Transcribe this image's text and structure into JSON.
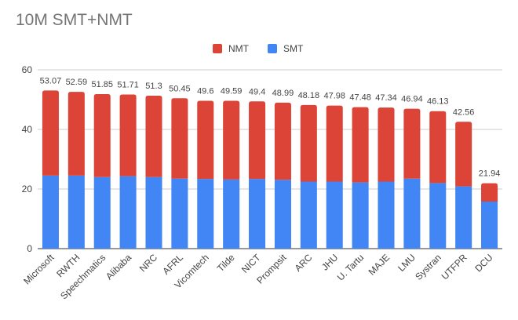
{
  "chart_data": {
    "type": "bar",
    "stacked": true,
    "title": "10M SMT+NMT",
    "xlabel": "",
    "ylabel": "",
    "ylim": [
      0,
      60
    ],
    "yticks": [
      0,
      20,
      40,
      60
    ],
    "grid": true,
    "legend_position": "top",
    "categories": [
      "Microsoft",
      "RWTH",
      "Speechmatics",
      "Alibaba",
      "NRC",
      "AFRL",
      "Vicomtech",
      "Tilde",
      "NICT",
      "Prompsit",
      "ARC",
      "JHU",
      "U. Tartu",
      "MAJE",
      "LMU",
      "Systran",
      "UTFPR",
      "DCU"
    ],
    "series": [
      {
        "name": "SMT",
        "color": "#4285f4",
        "values": [
          24.5,
          24.5,
          24.0,
          24.3,
          24.0,
          23.5,
          23.4,
          23.2,
          23.4,
          23.1,
          22.5,
          22.5,
          22.2,
          22.5,
          23.5,
          22.0,
          20.9,
          15.8
        ]
      },
      {
        "name": "NMT",
        "color": "#db4437",
        "values": [
          28.57,
          28.09,
          27.85,
          27.41,
          27.3,
          26.95,
          26.2,
          26.39,
          26.0,
          25.89,
          25.68,
          25.48,
          25.28,
          24.84,
          23.44,
          24.13,
          21.66,
          6.14
        ]
      }
    ],
    "totals": [
      "53.07",
      "52.59",
      "51.85",
      "51.71",
      "51.3",
      "50.45",
      "49.6",
      "49.59",
      "49.4",
      "48.99",
      "48.18",
      "47.98",
      "47.48",
      "47.34",
      "46.94",
      "46.13",
      "42.56",
      "21.94"
    ],
    "legend": [
      {
        "name": "NMT",
        "color": "#db4437"
      },
      {
        "name": "SMT",
        "color": "#4285f4"
      }
    ]
  }
}
